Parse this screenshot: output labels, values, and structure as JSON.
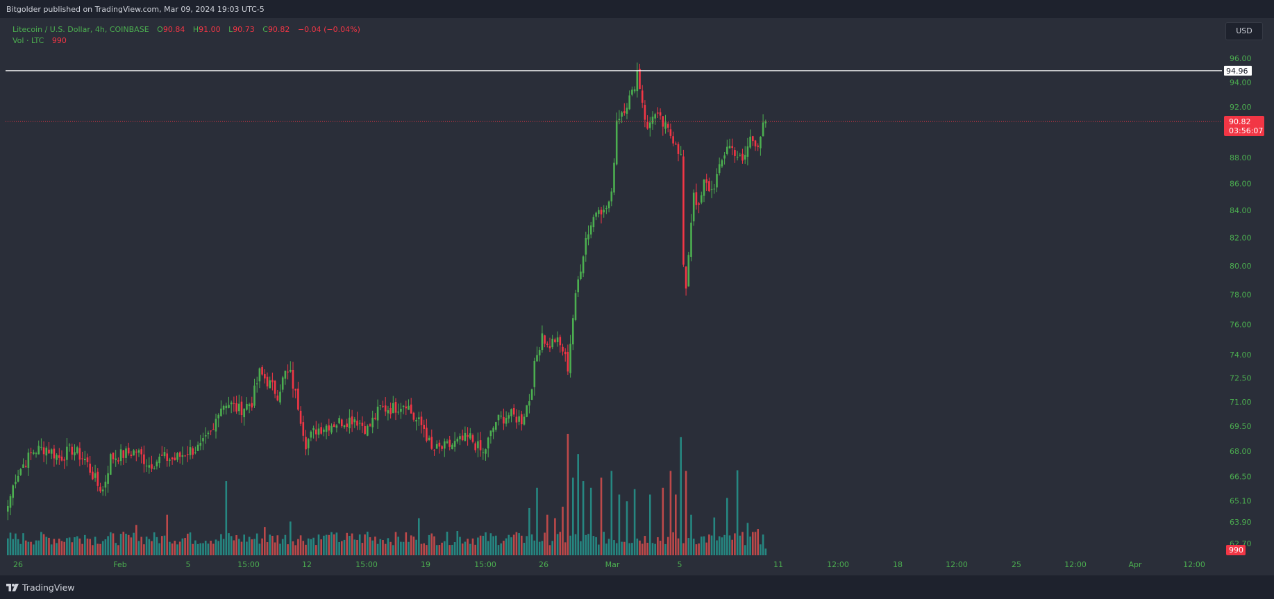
{
  "header": {
    "published_text": "Bitgolder published on TradingView.com, Mar 09, 2024 19:03 UTC-5"
  },
  "legend": {
    "symbol": "Litecoin / U.S. Dollar, 4h, COINBASE",
    "open_label": "O",
    "open": "90.84",
    "high_label": "H",
    "high": "91.00",
    "low_label": "L",
    "low": "90.73",
    "close_label": "C",
    "close": "90.82",
    "change": "−0.04 (−0.04%)",
    "volume_label": "Vol · LTC",
    "volume": "990"
  },
  "currency_button": "USD",
  "footer": {
    "brand": "TradingView"
  },
  "colors": {
    "up": "#4caf50",
    "down": "#f23645",
    "vol_up": "#26a69a",
    "vol_down": "#ef5350",
    "background": "#2a2e39",
    "text": "#d1d4dc"
  },
  "chart_data": {
    "type": "candlestick",
    "symbol": "LTC/USD",
    "interval": "4h",
    "y_scale": "log",
    "y_ticks": [
      "96.00",
      "94.00",
      "92.00",
      "90.00",
      "88.00",
      "86.00",
      "84.00",
      "82.00",
      "80.00",
      "78.00",
      "76.00",
      "74.00",
      "72.50",
      "71.00",
      "69.50",
      "68.00",
      "66.50",
      "65.10",
      "63.90",
      "62.70"
    ],
    "x_ticks": [
      "26",
      "Feb",
      "5",
      "15:00",
      "12",
      "15:00",
      "19",
      "15:00",
      "26",
      "Mar",
      "5",
      "11",
      "12:00",
      "18",
      "12:00",
      "25",
      "12:00",
      "Apr",
      "12:00"
    ],
    "horizontal_line": {
      "price": 94.96,
      "label": "94.96",
      "color": "#ffffff"
    },
    "last_price": {
      "price": 90.82,
      "label": "90.82",
      "countdown": "03:56:07"
    },
    "last_volume": {
      "value": 990,
      "label": "990"
    },
    "close_path": [
      [
        0,
        64.8
      ],
      [
        3,
        66.5
      ],
      [
        6,
        67.2
      ],
      [
        10,
        68.0
      ],
      [
        15,
        68.2
      ],
      [
        20,
        67.6
      ],
      [
        25,
        68.1
      ],
      [
        30,
        67.5
      ],
      [
        35,
        66.0
      ],
      [
        37,
        65.7
      ],
      [
        40,
        67.6
      ],
      [
        45,
        67.8
      ],
      [
        50,
        68.0
      ],
      [
        55,
        67.2
      ],
      [
        60,
        67.6
      ],
      [
        65,
        67.5
      ],
      [
        70,
        68.0
      ],
      [
        75,
        68.2
      ],
      [
        80,
        69.2
      ],
      [
        82,
        70.6
      ],
      [
        85,
        71.0
      ],
      [
        90,
        70.5
      ],
      [
        95,
        71.0
      ],
      [
        98,
        72.8
      ],
      [
        100,
        72.5
      ],
      [
        105,
        71.5
      ],
      [
        108,
        72.8
      ],
      [
        110,
        72.7
      ],
      [
        113,
        70.8
      ],
      [
        116,
        68.5
      ],
      [
        120,
        69.3
      ],
      [
        125,
        69.6
      ],
      [
        130,
        69.8
      ],
      [
        135,
        70.0
      ],
      [
        140,
        69.3
      ],
      [
        145,
        70.6
      ],
      [
        150,
        70.6
      ],
      [
        155,
        71.0
      ],
      [
        158,
        70.0
      ],
      [
        162,
        69.4
      ],
      [
        165,
        68.0
      ],
      [
        170,
        68.2
      ],
      [
        175,
        68.5
      ],
      [
        180,
        68.8
      ],
      [
        185,
        67.8
      ],
      [
        190,
        69.8
      ],
      [
        195,
        70.2
      ],
      [
        200,
        69.9
      ],
      [
        203,
        71.2
      ],
      [
        205,
        73.2
      ],
      [
        208,
        75.5
      ],
      [
        210,
        74.5
      ],
      [
        213,
        75.0
      ],
      [
        216,
        74.3
      ],
      [
        218,
        73.2
      ],
      [
        220,
        76.5
      ],
      [
        222,
        79.0
      ],
      [
        225,
        82.0
      ],
      [
        228,
        83.5
      ],
      [
        230,
        84.5
      ],
      [
        232,
        83.8
      ],
      [
        235,
        85.0
      ],
      [
        237,
        91.0
      ],
      [
        240,
        92.0
      ],
      [
        243,
        93.0
      ],
      [
        245,
        94.9
      ],
      [
        247,
        92.5
      ],
      [
        249,
        90.0
      ],
      [
        251,
        91.5
      ],
      [
        254,
        90.8
      ],
      [
        257,
        90.0
      ],
      [
        260,
        89.3
      ],
      [
        262,
        88.0
      ],
      [
        263,
        80.0
      ],
      [
        264,
        78.0
      ],
      [
        265,
        81.0
      ],
      [
        267,
        85.5
      ],
      [
        269,
        84.0
      ],
      [
        271,
        86.0
      ],
      [
        274,
        85.5
      ],
      [
        277,
        87.0
      ],
      [
        280,
        89.0
      ],
      [
        283,
        88.5
      ],
      [
        286,
        87.5
      ],
      [
        289,
        89.5
      ],
      [
        292,
        89.2
      ],
      [
        295,
        90.82
      ]
    ],
    "volume_spikes": [
      [
        0,
        2500
      ],
      [
        30,
        3000
      ],
      [
        50,
        4500
      ],
      [
        55,
        2400
      ],
      [
        62,
        6000
      ],
      [
        70,
        3200
      ],
      [
        85,
        11000
      ],
      [
        100,
        4200
      ],
      [
        110,
        5000
      ],
      [
        125,
        3000
      ],
      [
        140,
        3500
      ],
      [
        160,
        5500
      ],
      [
        175,
        3600
      ],
      [
        200,
        2900
      ],
      [
        203,
        7000
      ],
      [
        206,
        10000
      ],
      [
        210,
        6000
      ],
      [
        213,
        5500
      ],
      [
        216,
        7200
      ],
      [
        218,
        18000
      ],
      [
        220,
        11500
      ],
      [
        222,
        15000
      ],
      [
        224,
        11000
      ],
      [
        227,
        10000
      ],
      [
        231,
        11500
      ],
      [
        235,
        12500
      ],
      [
        238,
        9000
      ],
      [
        241,
        8000
      ],
      [
        244,
        9800
      ],
      [
        250,
        9000
      ],
      [
        255,
        10000
      ],
      [
        258,
        12500
      ],
      [
        260,
        9000
      ],
      [
        262,
        17500
      ],
      [
        264,
        12500
      ],
      [
        266,
        6000
      ],
      [
        275,
        5600
      ],
      [
        280,
        8500
      ],
      [
        284,
        12600
      ],
      [
        288,
        4800
      ],
      [
        292,
        3900
      ],
      [
        295,
        990
      ]
    ]
  }
}
